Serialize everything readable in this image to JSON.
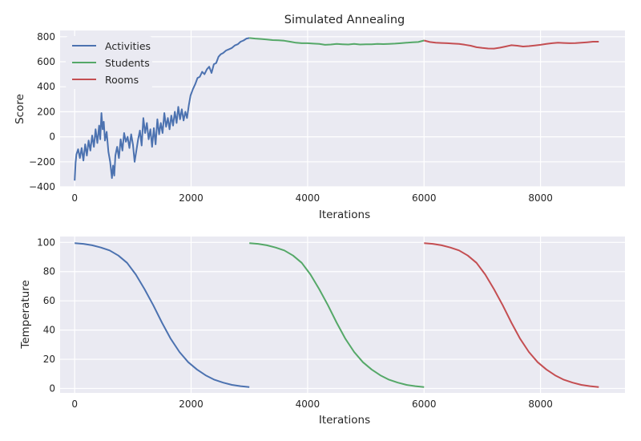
{
  "chart_data": [
    {
      "type": "line",
      "title": "Simulated Annealing",
      "xlabel": "Iterations",
      "ylabel": "Score",
      "xlim": [
        -250,
        9450
      ],
      "ylim": [
        -400,
        850
      ],
      "xticks": [
        0,
        2000,
        4000,
        6000,
        8000
      ],
      "yticks": [
        -400,
        -200,
        0,
        200,
        400,
        600,
        800
      ],
      "ytick_labels": [
        "−400",
        "−200",
        "0",
        "200",
        "400",
        "600",
        "800"
      ],
      "grid": true,
      "legend": "top-left",
      "series": [
        {
          "name": "Activities",
          "color": "#4c72b0",
          "points": [
            [
              0,
              -350
            ],
            [
              15,
              -210
            ],
            [
              30,
              -140
            ],
            [
              60,
              -100
            ],
            [
              90,
              -170
            ],
            [
              120,
              -90
            ],
            [
              150,
              -190
            ],
            [
              180,
              -60
            ],
            [
              210,
              -150
            ],
            [
              240,
              -30
            ],
            [
              270,
              -110
            ],
            [
              300,
              10
            ],
            [
              330,
              -80
            ],
            [
              360,
              60
            ],
            [
              390,
              -50
            ],
            [
              420,
              90
            ],
            [
              440,
              -20
            ],
            [
              460,
              190
            ],
            [
              480,
              60
            ],
            [
              500,
              120
            ],
            [
              520,
              -30
            ],
            [
              550,
              40
            ],
            [
              580,
              -120
            ],
            [
              610,
              -200
            ],
            [
              640,
              -330
            ],
            [
              660,
              -230
            ],
            [
              680,
              -310
            ],
            [
              700,
              -150
            ],
            [
              730,
              -80
            ],
            [
              760,
              -170
            ],
            [
              790,
              -20
            ],
            [
              820,
              -110
            ],
            [
              850,
              30
            ],
            [
              880,
              -40
            ],
            [
              910,
              0
            ],
            [
              940,
              -90
            ],
            [
              970,
              20
            ],
            [
              1000,
              -60
            ],
            [
              1030,
              -200
            ],
            [
              1060,
              -110
            ],
            [
              1090,
              -20
            ],
            [
              1120,
              50
            ],
            [
              1150,
              -70
            ],
            [
              1180,
              150
            ],
            [
              1210,
              30
            ],
            [
              1240,
              110
            ],
            [
              1270,
              -20
            ],
            [
              1300,
              60
            ],
            [
              1330,
              -80
            ],
            [
              1360,
              70
            ],
            [
              1390,
              -60
            ],
            [
              1420,
              140
            ],
            [
              1450,
              20
            ],
            [
              1480,
              110
            ],
            [
              1510,
              30
            ],
            [
              1540,
              190
            ],
            [
              1570,
              80
            ],
            [
              1600,
              150
            ],
            [
              1630,
              60
            ],
            [
              1660,
              170
            ],
            [
              1690,
              90
            ],
            [
              1720,
              200
            ],
            [
              1750,
              110
            ],
            [
              1780,
              240
            ],
            [
              1810,
              140
            ],
            [
              1840,
              220
            ],
            [
              1870,
              130
            ],
            [
              1900,
              200
            ],
            [
              1930,
              150
            ],
            [
              1960,
              250
            ],
            [
              1990,
              330
            ],
            [
              2030,
              380
            ],
            [
              2070,
              420
            ],
            [
              2110,
              470
            ],
            [
              2150,
              480
            ],
            [
              2190,
              520
            ],
            [
              2230,
              500
            ],
            [
              2270,
              540
            ],
            [
              2310,
              560
            ],
            [
              2350,
              510
            ],
            [
              2390,
              580
            ],
            [
              2430,
              590
            ],
            [
              2470,
              640
            ],
            [
              2510,
              660
            ],
            [
              2550,
              670
            ],
            [
              2600,
              690
            ],
            [
              2650,
              700
            ],
            [
              2700,
              710
            ],
            [
              2750,
              730
            ],
            [
              2800,
              740
            ],
            [
              2850,
              760
            ],
            [
              2900,
              770
            ],
            [
              2950,
              785
            ],
            [
              3000,
              790
            ]
          ]
        },
        {
          "name": "Students",
          "color": "#55a868",
          "points": [
            [
              3000,
              790
            ],
            [
              3100,
              785
            ],
            [
              3200,
              782
            ],
            [
              3300,
              778
            ],
            [
              3400,
              773
            ],
            [
              3500,
              772
            ],
            [
              3600,
              768
            ],
            [
              3700,
              760
            ],
            [
              3800,
              752
            ],
            [
              3900,
              748
            ],
            [
              4000,
              748
            ],
            [
              4100,
              745
            ],
            [
              4200,
              742
            ],
            [
              4300,
              735
            ],
            [
              4400,
              738
            ],
            [
              4500,
              742
            ],
            [
              4600,
              740
            ],
            [
              4700,
              738
            ],
            [
              4800,
              742
            ],
            [
              4900,
              738
            ],
            [
              5000,
              740
            ],
            [
              5100,
              740
            ],
            [
              5200,
              742
            ],
            [
              5300,
              741
            ],
            [
              5400,
              743
            ],
            [
              5500,
              745
            ],
            [
              5600,
              748
            ],
            [
              5700,
              752
            ],
            [
              5800,
              755
            ],
            [
              5900,
              758
            ],
            [
              6000,
              770
            ]
          ]
        },
        {
          "name": "Rooms",
          "color": "#c44e52",
          "points": [
            [
              6000,
              770
            ],
            [
              6100,
              758
            ],
            [
              6200,
              752
            ],
            [
              6300,
              750
            ],
            [
              6400,
              748
            ],
            [
              6500,
              745
            ],
            [
              6600,
              742
            ],
            [
              6700,
              736
            ],
            [
              6800,
              728
            ],
            [
              6900,
              716
            ],
            [
              7000,
              710
            ],
            [
              7100,
              706
            ],
            [
              7200,
              705
            ],
            [
              7300,
              712
            ],
            [
              7400,
              722
            ],
            [
              7500,
              732
            ],
            [
              7600,
              728
            ],
            [
              7700,
              722
            ],
            [
              7800,
              725
            ],
            [
              7900,
              730
            ],
            [
              8000,
              735
            ],
            [
              8100,
              742
            ],
            [
              8200,
              748
            ],
            [
              8300,
              752
            ],
            [
              8400,
              750
            ],
            [
              8500,
              748
            ],
            [
              8600,
              749
            ],
            [
              8700,
              752
            ],
            [
              8800,
              756
            ],
            [
              8900,
              760
            ],
            [
              9000,
              760
            ]
          ]
        }
      ]
    },
    {
      "type": "line",
      "xlabel": "Iterations",
      "ylabel": "Temperature",
      "xlim": [
        -250,
        9450
      ],
      "ylim": [
        -3,
        104
      ],
      "xticks": [
        0,
        2000,
        4000,
        6000,
        8000
      ],
      "yticks": [
        0,
        20,
        40,
        60,
        80,
        100
      ],
      "grid": true,
      "series": [
        {
          "color": "#4c72b0",
          "points": [
            [
              0,
              99.5
            ],
            [
              150,
              99
            ],
            [
              300,
              98
            ],
            [
              450,
              96.5
            ],
            [
              600,
              94.5
            ],
            [
              750,
              91
            ],
            [
              900,
              86
            ],
            [
              1050,
              78
            ],
            [
              1200,
              68
            ],
            [
              1350,
              57
            ],
            [
              1500,
              45
            ],
            [
              1650,
              34
            ],
            [
              1800,
              25
            ],
            [
              1950,
              18
            ],
            [
              2100,
              13
            ],
            [
              2250,
              9
            ],
            [
              2400,
              6
            ],
            [
              2550,
              4
            ],
            [
              2700,
              2.5
            ],
            [
              2850,
              1.6
            ],
            [
              3000,
              1
            ]
          ]
        },
        {
          "color": "#55a868",
          "points": [
            [
              3000,
              99.5
            ],
            [
              3150,
              99
            ],
            [
              3300,
              98
            ],
            [
              3450,
              96.5
            ],
            [
              3600,
              94.5
            ],
            [
              3750,
              91
            ],
            [
              3900,
              86
            ],
            [
              4050,
              78
            ],
            [
              4200,
              68
            ],
            [
              4350,
              57
            ],
            [
              4500,
              45
            ],
            [
              4650,
              34
            ],
            [
              4800,
              25
            ],
            [
              4950,
              18
            ],
            [
              5100,
              13
            ],
            [
              5250,
              9
            ],
            [
              5400,
              6
            ],
            [
              5550,
              4
            ],
            [
              5700,
              2.5
            ],
            [
              5850,
              1.6
            ],
            [
              6000,
              1
            ]
          ]
        },
        {
          "color": "#c44e52",
          "points": [
            [
              6000,
              99.5
            ],
            [
              6150,
              99
            ],
            [
              6300,
              98
            ],
            [
              6450,
              96.5
            ],
            [
              6600,
              94.5
            ],
            [
              6750,
              91
            ],
            [
              6900,
              86
            ],
            [
              7050,
              78
            ],
            [
              7200,
              68
            ],
            [
              7350,
              57
            ],
            [
              7500,
              45
            ],
            [
              7650,
              34
            ],
            [
              7800,
              25
            ],
            [
              7950,
              18
            ],
            [
              8100,
              13
            ],
            [
              8250,
              9
            ],
            [
              8400,
              6
            ],
            [
              8550,
              4
            ],
            [
              8700,
              2.5
            ],
            [
              8850,
              1.6
            ],
            [
              9000,
              1
            ]
          ]
        }
      ]
    }
  ]
}
